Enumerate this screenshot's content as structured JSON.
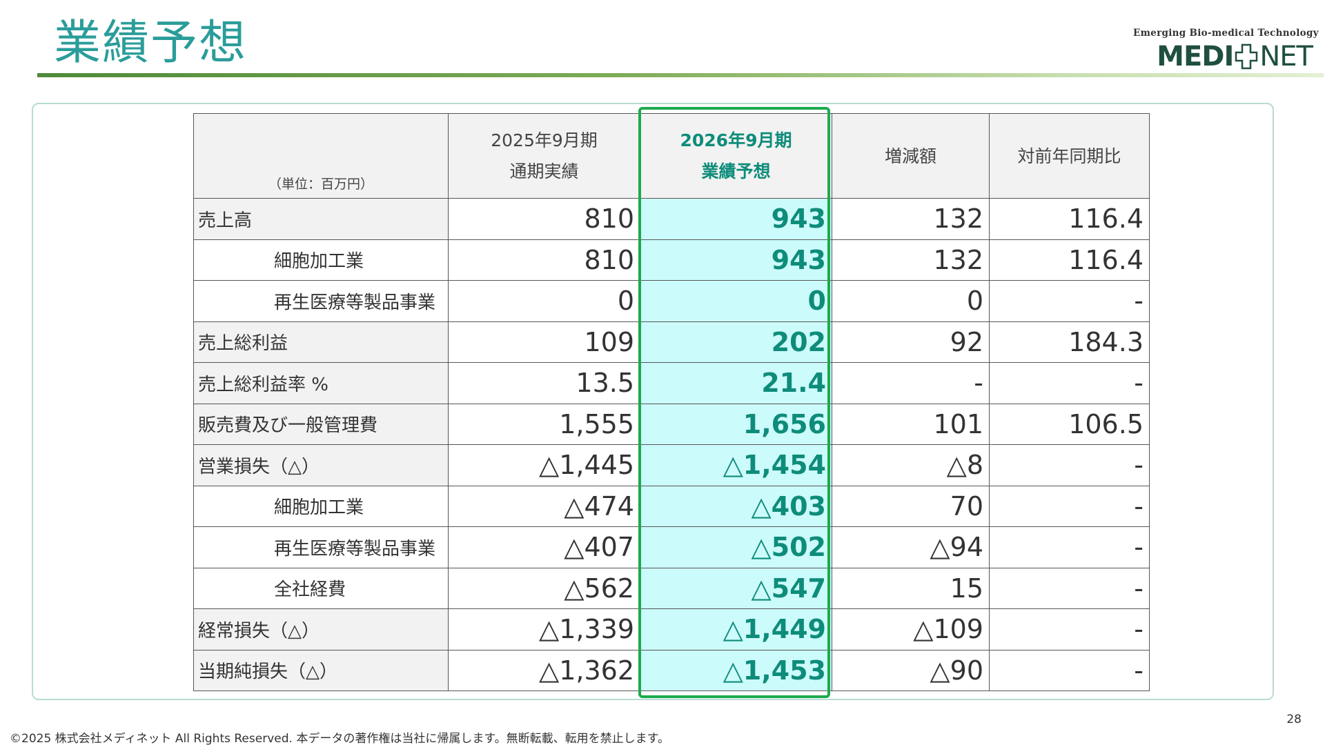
{
  "slide": {
    "title": "業績予想",
    "page_number": "28",
    "footer": "©2025 株式会社メディネット All Rights Reserved. 本データの著作権は当社に帰属します。無断転載、転用を禁止します。"
  },
  "logo": {
    "tagline": "Emerging Bio-medical Technology",
    "left": "MEDI",
    "right": "NET",
    "color": "#1f4f3f"
  },
  "table": {
    "unit": "（単位：百万円）",
    "headers": {
      "col1_line1": "2025年9月期",
      "col1_line2": "通期実績",
      "col2_line1": "2026年9月期",
      "col2_line2": "業績予想",
      "col3": "増減額",
      "col4": "対前年同期比"
    },
    "rows": [
      {
        "label": "売上高",
        "level": "main",
        "actual": "810",
        "forecast": "943",
        "change": "132",
        "ratio": "116.4"
      },
      {
        "label": "細胞加工業",
        "level": "sub",
        "actual": "810",
        "forecast": "943",
        "change": "132",
        "ratio": "116.4"
      },
      {
        "label": "再生医療等製品事業",
        "level": "sub",
        "actual": "0",
        "forecast": "0",
        "change": "0",
        "ratio": "-"
      },
      {
        "label": "売上総利益",
        "level": "main",
        "actual": "109",
        "forecast": "202",
        "change": "92",
        "ratio": "184.3"
      },
      {
        "label": "売上総利益率 %",
        "level": "main",
        "actual": "13.5",
        "forecast": "21.4",
        "change": "-",
        "ratio": "-"
      },
      {
        "label": "販売費及び一般管理費",
        "level": "main",
        "actual": "1,555",
        "forecast": "1,656",
        "change": "101",
        "ratio": "106.5"
      },
      {
        "label": "営業損失（△）",
        "level": "main",
        "actual": "△1,445",
        "forecast": "△1,454",
        "change": "△8",
        "ratio": "-"
      },
      {
        "label": "細胞加工業",
        "level": "sub",
        "actual": "△474",
        "forecast": "△403",
        "change": "70",
        "ratio": "-"
      },
      {
        "label": "再生医療等製品事業",
        "level": "sub",
        "actual": "△407",
        "forecast": "△502",
        "change": "△94",
        "ratio": "-"
      },
      {
        "label": "全社経費",
        "level": "sub",
        "actual": "△562",
        "forecast": "△547",
        "change": "15",
        "ratio": "-"
      },
      {
        "label": "経常損失（△）",
        "level": "main",
        "actual": "△1,339",
        "forecast": "△1,449",
        "change": "△109",
        "ratio": "-"
      },
      {
        "label": "当期純損失（△）",
        "level": "main",
        "actual": "△1,362",
        "forecast": "△1,453",
        "change": "△90",
        "ratio": "-"
      }
    ]
  },
  "colors": {
    "title": "#2a9d9a",
    "forecast_text": "#0e8c7a",
    "forecast_fill": "#ccfbfc",
    "forecast_frame": "#1caa4e",
    "header_fill": "#f2f2f2"
  }
}
